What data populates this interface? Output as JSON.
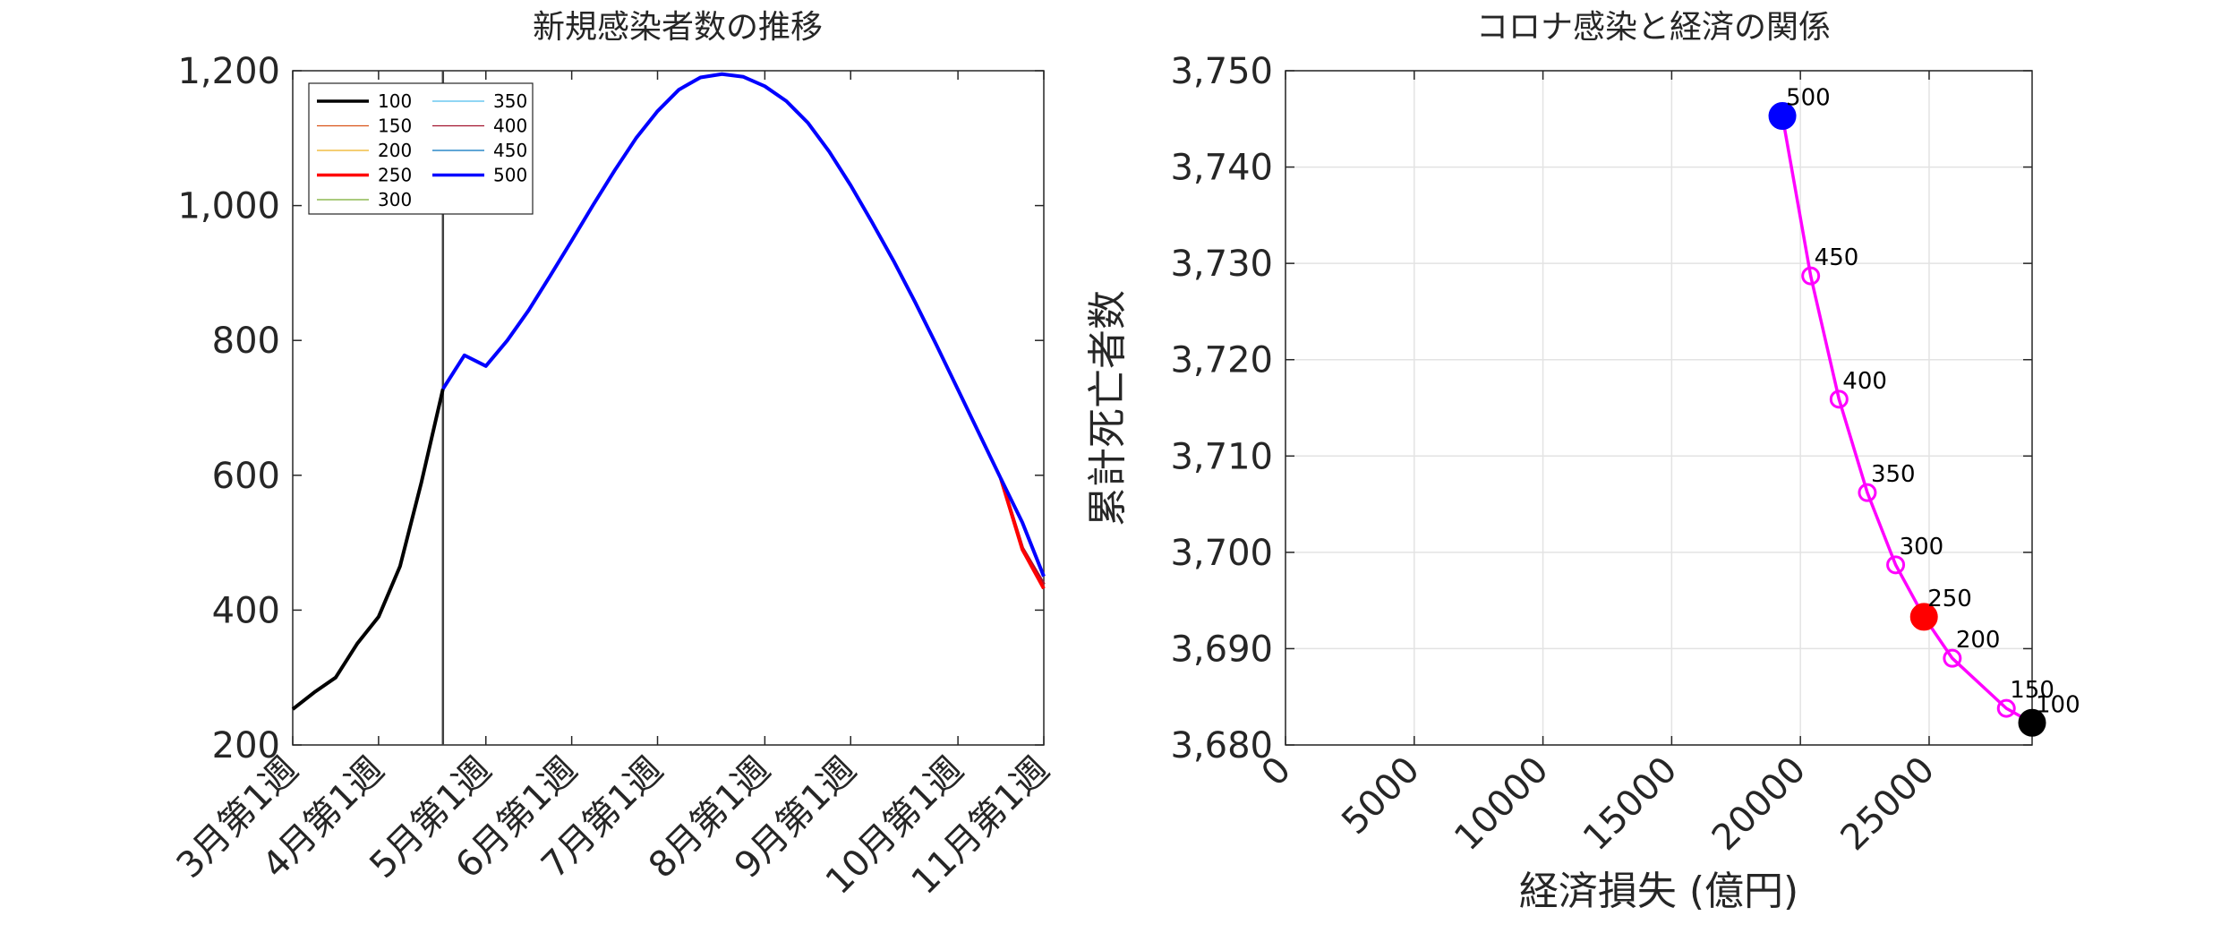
{
  "chart_data": [
    {
      "type": "line",
      "title": "新規感染者数の推移",
      "xlabel": "",
      "ylabel": "",
      "ylim": [
        200,
        1200
      ],
      "yticks": [
        200,
        400,
        600,
        800,
        1000,
        1200
      ],
      "ytick_labels": [
        "200",
        "400",
        "600",
        "800",
        "1,000",
        "1,200"
      ],
      "xlim": [
        0,
        35
      ],
      "xticks": [
        0,
        4,
        9,
        13,
        17,
        22,
        26,
        31,
        35
      ],
      "xtick_labels": [
        "3月第1週",
        "4月第1週",
        "5月第1週",
        "6月第1週",
        "7月第1週",
        "8月第1週",
        "9月第1週",
        "10月第1週",
        "11月第1週"
      ],
      "vline_x": 7,
      "grid": false,
      "legend_position": "top-left",
      "legend_labels": [
        "100",
        "150",
        "200",
        "250",
        "300",
        "350",
        "400",
        "450",
        "500"
      ],
      "colors": {
        "100": "#000000",
        "150": "#D95319",
        "200": "#EDB120",
        "250": "#FF0000",
        "300": "#77AC30",
        "350": "#4DBEEE",
        "400": "#A2142F",
        "450": "#0072BD",
        "500": "#0000FF",
        "vline": "#404040"
      },
      "early": {
        "x": [
          0,
          1,
          2,
          3,
          4,
          5,
          6,
          7
        ],
        "y": [
          253,
          278,
          300,
          350,
          390,
          465,
          590,
          728
        ]
      },
      "series": [
        {
          "name": "500",
          "x": [
            7,
            8,
            9,
            10,
            11,
            12,
            13,
            14,
            15,
            16,
            17,
            18,
            19,
            20,
            21,
            22,
            23,
            24,
            25,
            26,
            27,
            28,
            29,
            30,
            31,
            32,
            33,
            34,
            35
          ],
          "y": [
            728,
            778,
            762,
            800,
            845,
            896,
            948,
            1001,
            1052,
            1100,
            1140,
            1172,
            1190,
            1195,
            1191,
            1177,
            1155,
            1123,
            1080,
            1030,
            975,
            918,
            857,
            793,
            727,
            661,
            595,
            530,
            450
          ]
        },
        {
          "name": "250",
          "x": [
            33,
            34,
            35
          ],
          "y": [
            595,
            490,
            432
          ]
        },
        {
          "name": "400",
          "x": [
            33,
            34,
            35
          ],
          "y": [
            595,
            492,
            438
          ]
        }
      ]
    },
    {
      "type": "scatter",
      "title": "コロナ感染と経済の関係",
      "xlabel": "経済損失 (億円)",
      "ylabel": "累計死亡者数",
      "xlim": [
        0,
        29000
      ],
      "ylim": [
        3680,
        3750
      ],
      "xticks": [
        0,
        5000,
        10000,
        15000,
        20000,
        25000
      ],
      "xtick_labels": [
        "0",
        "5000",
        "10000",
        "15000",
        "20000",
        "25000"
      ],
      "yticks": [
        3680,
        3690,
        3700,
        3710,
        3720,
        3730,
        3740,
        3750
      ],
      "ytick_labels": [
        "3,680",
        "3,690",
        "3,700",
        "3,710",
        "3,720",
        "3,730",
        "3,740",
        "3,750"
      ],
      "grid": true,
      "line_color": "#FF00FF",
      "points": [
        {
          "label": "100",
          "x": 29000,
          "y": 3682.3,
          "style": "filled",
          "color": "#000000"
        },
        {
          "label": "150",
          "x": 28000,
          "y": 3683.8,
          "style": "open",
          "color": "#FF00FF"
        },
        {
          "label": "200",
          "x": 25900,
          "y": 3689.0,
          "style": "open",
          "color": "#FF00FF"
        },
        {
          "label": "250",
          "x": 24800,
          "y": 3693.3,
          "style": "filled",
          "color": "#FF0000"
        },
        {
          "label": "300",
          "x": 23700,
          "y": 3698.7,
          "style": "open",
          "color": "#FF00FF"
        },
        {
          "label": "350",
          "x": 22600,
          "y": 3706.2,
          "style": "open",
          "color": "#FF00FF"
        },
        {
          "label": "400",
          "x": 21500,
          "y": 3715.9,
          "style": "open",
          "color": "#FF00FF"
        },
        {
          "label": "450",
          "x": 20400,
          "y": 3728.7,
          "style": "open",
          "color": "#FF00FF"
        },
        {
          "label": "500",
          "x": 19300,
          "y": 3745.3,
          "style": "filled",
          "color": "#0000FF"
        }
      ]
    }
  ]
}
